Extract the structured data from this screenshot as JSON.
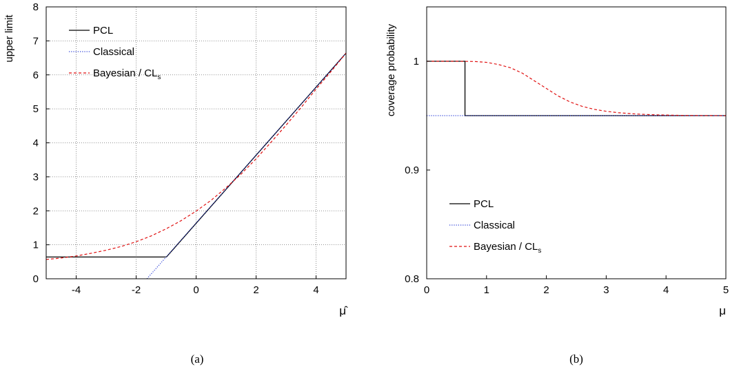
{
  "colors": {
    "pcl": "#000000",
    "classical": "#2b3fd6",
    "bayesian": "#e01010",
    "grid": "#6e6e6e"
  },
  "panels": [
    {
      "caption": "(a)",
      "chart_data": {
        "type": "line",
        "title": "",
        "xlabel": "μ̂",
        "ylabel": "upper limit",
        "xlim": [
          -5,
          5
        ],
        "ylim": [
          0,
          8
        ],
        "xticks": [
          -4,
          -2,
          0,
          2,
          4
        ],
        "yticks": [
          0,
          1,
          2,
          3,
          4,
          5,
          6,
          7,
          8
        ],
        "xtick_labels": [
          "-4",
          "-2",
          "0",
          "2",
          "4"
        ],
        "ytick_labels": [
          "0",
          "1",
          "2",
          "3",
          "4",
          "5",
          "6",
          "7",
          "8"
        ],
        "grid": true,
        "legend_position": "top-left",
        "series": [
          {
            "name": "PCL",
            "key": "pcl",
            "style": "solid",
            "x": [
              -5,
              -0.99,
              5
            ],
            "y": [
              0.64,
              0.64,
              6.64
            ]
          },
          {
            "name": "Classical",
            "key": "classical",
            "style": "dotted",
            "x": [
              -1.64,
              5
            ],
            "y": [
              0,
              6.64
            ]
          },
          {
            "name": "Bayesian / CL_s",
            "key": "bayesian",
            "style": "dashed",
            "x": [
              -5,
              -4.5,
              -4,
              -3.5,
              -3,
              -2.5,
              -2,
              -1.5,
              -1,
              -0.5,
              0,
              0.5,
              1,
              1.5,
              2,
              2.5,
              3,
              3.5,
              4,
              4.5,
              5
            ],
            "y": [
              0.57,
              0.61,
              0.67,
              0.75,
              0.84,
              0.95,
              1.09,
              1.26,
              1.47,
              1.71,
              1.99,
              2.31,
              2.68,
              3.08,
              3.53,
              4.02,
              4.52,
              5.04,
              5.58,
              6.1,
              6.64
            ]
          }
        ]
      }
    },
    {
      "caption": "(b)",
      "chart_data": {
        "type": "line",
        "title": "",
        "xlabel": "μ",
        "ylabel": "coverage probability",
        "xlim": [
          0,
          5
        ],
        "ylim": [
          0.8,
          1.05
        ],
        "xticks": [
          0,
          1,
          2,
          3,
          4,
          5
        ],
        "yticks": [
          0.8,
          0.9,
          1.0
        ],
        "xtick_labels": [
          "0",
          "1",
          "2",
          "3",
          "4",
          "5"
        ],
        "ytick_labels": [
          "0.8",
          "0.9",
          "1"
        ],
        "grid": false,
        "legend_position": "center-left",
        "series": [
          {
            "name": "PCL",
            "key": "pcl",
            "style": "solid",
            "x": [
              0,
              0.64,
              0.64,
              5
            ],
            "y": [
              1.0,
              1.0,
              0.95,
              0.95
            ]
          },
          {
            "name": "Classical",
            "key": "classical",
            "style": "dotted",
            "x": [
              0,
              5
            ],
            "y": [
              0.95,
              0.95
            ]
          },
          {
            "name": "Bayesian / CL_s",
            "key": "bayesian",
            "style": "dashed",
            "x": [
              0,
              0.5,
              0.8,
              1.0,
              1.2,
              1.4,
              1.6,
              1.8,
              2.0,
              2.2,
              2.4,
              2.6,
              2.8,
              3.0,
              3.2,
              3.5,
              3.8,
              4.2,
              4.6,
              5.0
            ],
            "y": [
              1.0,
              1.0,
              0.9998,
              0.999,
              0.997,
              0.994,
              0.989,
              0.982,
              0.975,
              0.968,
              0.9625,
              0.9585,
              0.9558,
              0.954,
              0.9527,
              0.9515,
              0.9508,
              0.9503,
              0.9501,
              0.95
            ]
          }
        ]
      }
    }
  ]
}
